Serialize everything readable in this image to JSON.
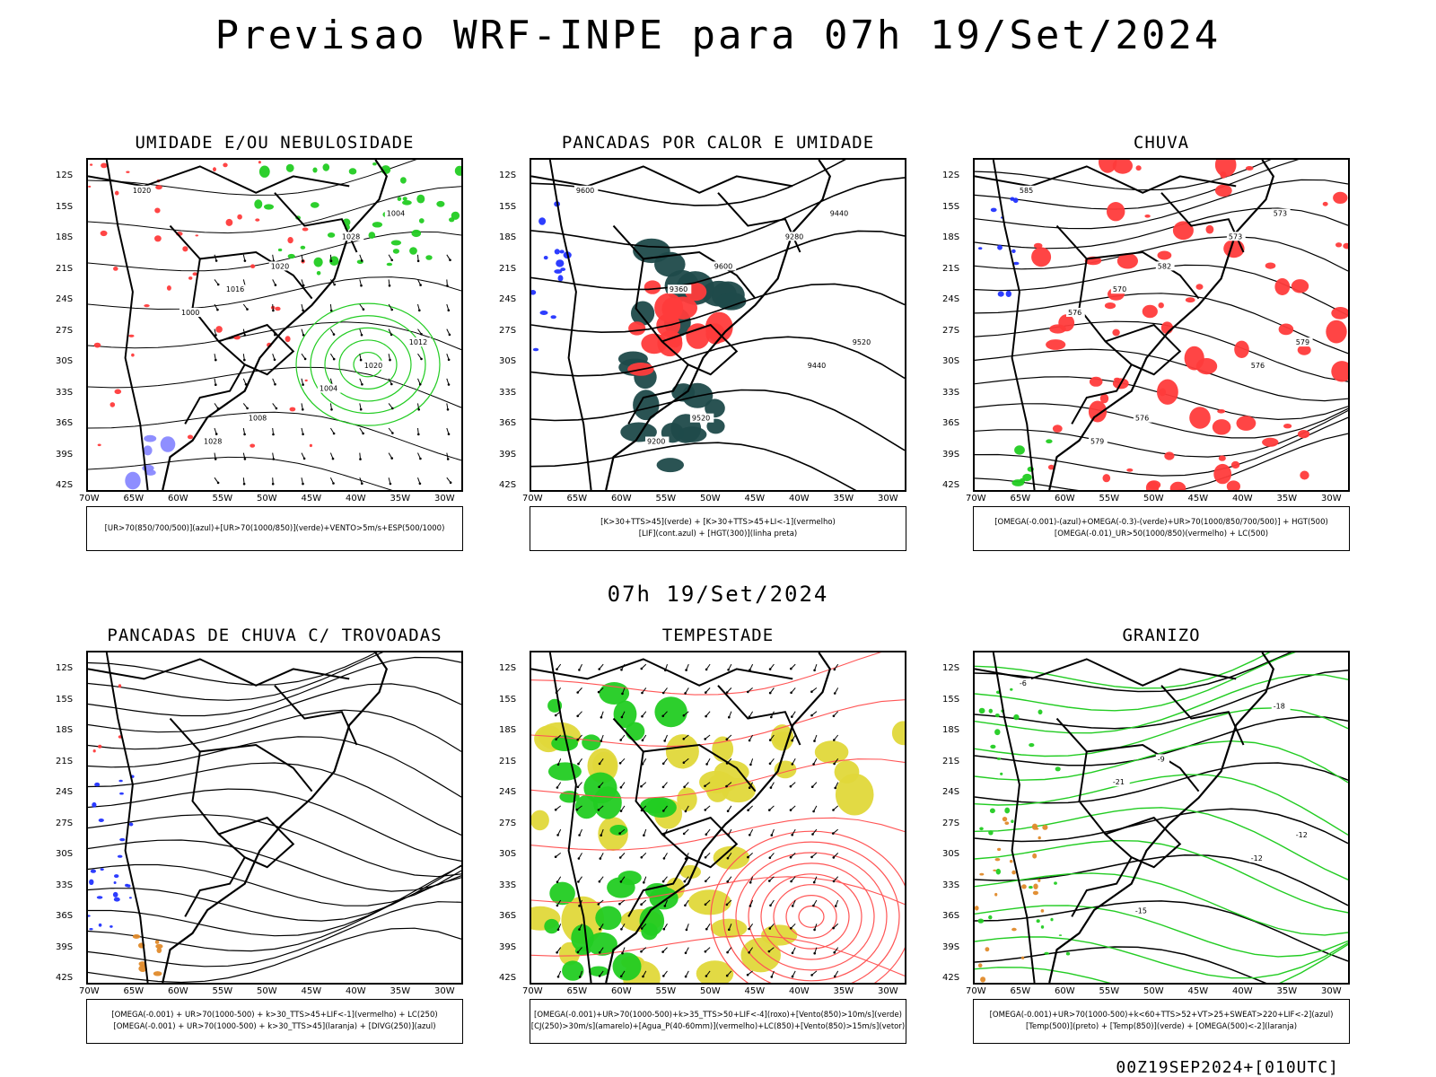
{
  "title": "Previsao WRF-INPE  para 07h 19/Set/2024",
  "mid_title": "07h 19/Set/2024",
  "footer": "00Z19SEP2024+[010UTC]",
  "lat_labels": [
    "12S",
    "15S",
    "18S",
    "21S",
    "24S",
    "27S",
    "30S",
    "33S",
    "36S",
    "39S",
    "42S"
  ],
  "lon_labels": [
    "70W",
    "65W",
    "60W",
    "55W",
    "50W",
    "45W",
    "40W",
    "35W",
    "30W"
  ],
  "colors": {
    "red": "#ff3b3b",
    "green": "#22cc22",
    "blue": "#2233ff",
    "darkteal": "#1f4a4a",
    "yellow": "#e0d83a",
    "orange": "#e08a2a"
  },
  "panels": [
    {
      "title": "UMIDADE E/OU NEBULOSIDADE",
      "legend": [
        "[UR>70(850/700/500)](azul)+[UR>70(1000/850)](verde)+VENTO>5m/s+ESP(500/1000)"
      ],
      "contour_labels": [
        "1020",
        "1020",
        "1012",
        "1008",
        "1004",
        "1016",
        "1020",
        "1028",
        "1028",
        "1000",
        "1004"
      ]
    },
    {
      "title": "PANCADAS POR CALOR E UMIDADE",
      "legend": [
        "[K>30+TTS>45](verde) + [K>30+TTS>45+LI<-1](vermelho)",
        "[LIF](cont.azul) + [HGT(300)](linha preta)"
      ],
      "contour_labels": [
        "9600",
        "9600",
        "9520",
        "9520",
        "9440",
        "9360",
        "9440",
        "9200",
        "9280"
      ]
    },
    {
      "title": "CHUVA",
      "legend": [
        "[OMEGA(-0.001)-(azul)+OMEGA(-0.3)-(verde)+UR>70(1000/850/700/500)] + HGT(500)",
        "[OMEGA(-0.01)_UR>50(1000/850)(vermelho) + LC(500)"
      ],
      "contour_labels": [
        "585",
        "582",
        "579",
        "576",
        "573",
        "570",
        "576",
        "579",
        "573",
        "576"
      ]
    },
    {
      "title": "PANCADAS DE CHUVA C/ TROVOADAS",
      "legend": [
        "[OMEGA(-0.001) + UR>70(1000-500) + k>30_TTS>45+LIF<-1](vermelho) + LC(250)",
        "[OMEGA(-0.001) + UR>70(1000-500) + k>30_TTS>45](laranja) + [DIVG(250)](azul)"
      ],
      "contour_labels": []
    },
    {
      "title": "TEMPESTADE",
      "legend": [
        "[OMEGA(-0.001)+UR>70(1000-500)+k>35_TTS>50+LIF<-4](roxo)+[Vento(850)>10m/s](verde)",
        "[CJ(250)>30m/s](amarelo)+[Agua_P(40-60mm)](vermelho)+LC(850)+[Vento(850)>15m/s](vetor)"
      ],
      "contour_labels": []
    },
    {
      "title": "GRANIZO",
      "legend": [
        "[OMEGA(-0.001)+UR>70(1000-500)+k<60+TTS>52+VT>25+SWEAT>220+LIF<-2](azul)",
        "[Temp(500)](preto) + [Temp(850)](verde) + [OMEGA(500)<-2](laranja)"
      ],
      "contour_labels": [
        "-6",
        "-9",
        "-12",
        "-15",
        "-18",
        "-21",
        "-12"
      ]
    }
  ]
}
